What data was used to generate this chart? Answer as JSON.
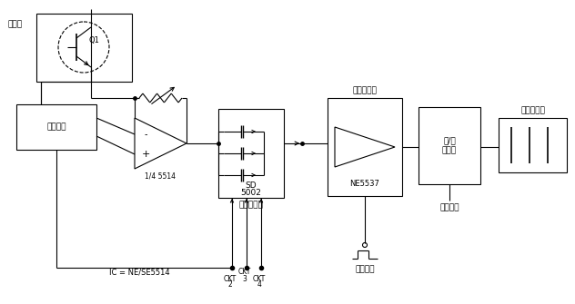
{
  "bg_color": "#ffffff",
  "line_color": "#000000",
  "labels": {
    "sensor": "传感器",
    "q1": "Q1",
    "bias": "偏置电路",
    "ic_label": "IC = NE/SE5514",
    "opamp_label": "1/4 5514",
    "mux": "多路连接器",
    "sd5002_1": "SD",
    "sd5002_2": "5002",
    "sample_hold_title": "采样和保持",
    "ne5537": "NE5537",
    "sample_hold_ctrl": "采样保持",
    "adc": "模/数\n转换器",
    "mcu": "微处理机",
    "display": "数字读出器",
    "ckt2": "CKT\n2",
    "ckt3": "CKT\n3",
    "ckt4": "CKT\n4"
  },
  "figsize": [
    6.32,
    3.35
  ],
  "dpi": 100
}
